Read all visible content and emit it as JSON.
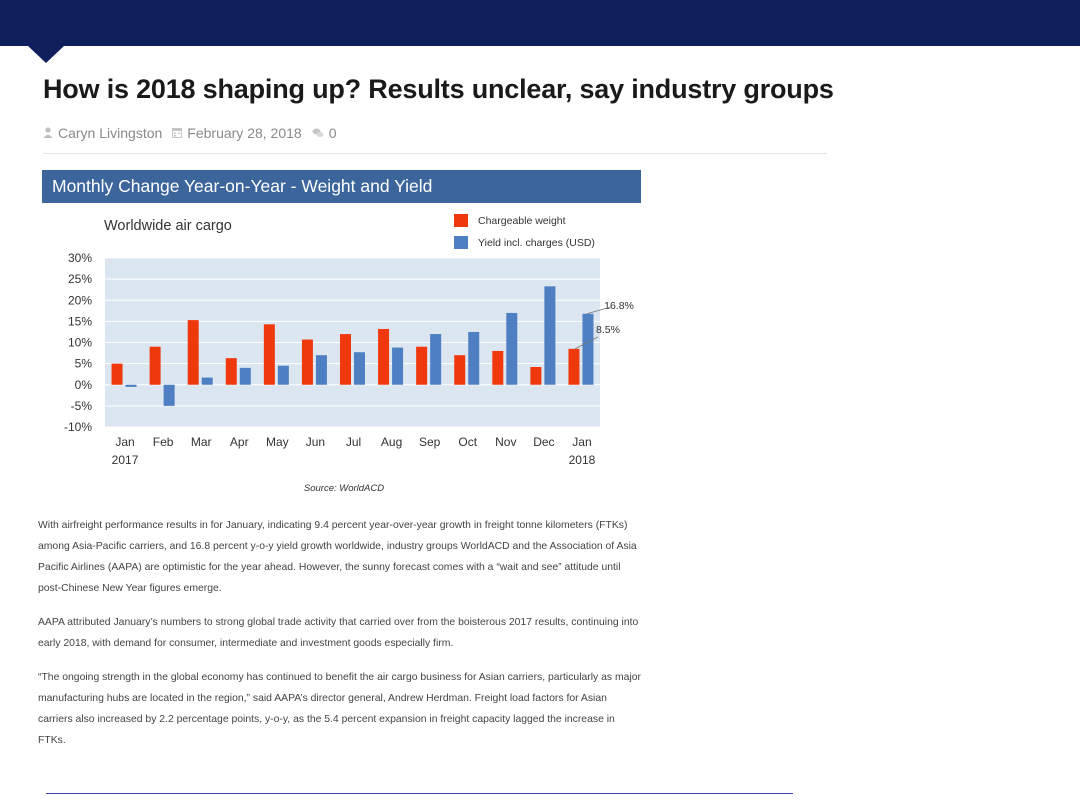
{
  "article": {
    "title": "How is 2018 shaping up? Results unclear, say industry groups",
    "author": "Caryn Livingston",
    "date": "February 28, 2018",
    "comments": "0",
    "icons": [
      "user-icon",
      "calendar-icon",
      "comments-icon"
    ],
    "paragraphs": [
      "With airfreight performance results in for January, indicating 9.4 percent year-over-year growth in freight tonne kilometers (FTKs) among Asia-Pacific carriers, and 16.8 percent y-o-y yield growth worldwide, industry groups WorldACD and the Association of Asia Pacific Airlines (AAPA) are optimistic for the year ahead. However, the sunny forecast comes with a “wait and see” attitude until post-Chinese New Year figures emerge.",
      "AAPA attributed January’s numbers to strong global trade activity that carried over from the boisterous 2017 results, continuing into early 2018, with demand for consumer, intermediate and investment goods especially firm.",
      "“The ongoing strength in the global economy has continued to benefit the air cargo business for Asian carriers, particularly as major manufacturing hubs are located in the region,” said AAPA’s director general, Andrew Herdman. Freight load factors for Asian carriers also increased by 2.2 percentage points, y-o-y, as the 5.4 percent expansion in freight capacity lagged the increase in FTKs."
    ]
  },
  "chart_data": {
    "type": "bar",
    "header": "Monthly Change Year-on-Year - Weight and Yield",
    "title": "Worldwide air cargo",
    "source": "Source: WorldACD",
    "categories": [
      "Jan",
      "Feb",
      "Mar",
      "Apr",
      "May",
      "Jun",
      "Jul",
      "Aug",
      "Sep",
      "Oct",
      "Nov",
      "Dec",
      "Jan"
    ],
    "category_years": [
      "2017",
      "",
      "",
      "",
      "",
      "",
      "",
      "",
      "",
      "",
      "",
      "",
      "2018"
    ],
    "yticks": [
      "30%",
      "25%",
      "20%",
      "15%",
      "10%",
      "5%",
      "0%",
      "-5%",
      "-10%"
    ],
    "ylim": [
      -10,
      30
    ],
    "series": [
      {
        "name": "Chargeable weight",
        "color": "#f0380d",
        "values": [
          5,
          9,
          15.3,
          6.3,
          14.3,
          10.7,
          12,
          13.2,
          9,
          7,
          8,
          4.2,
          8.5
        ]
      },
      {
        "name": "Yield incl. charges (USD)",
        "color": "#4d7fc2",
        "values": [
          -0.5,
          -5,
          1.7,
          4,
          4.5,
          7,
          7.7,
          8.8,
          12,
          12.5,
          17,
          23.3,
          16.8
        ]
      }
    ],
    "annotations": [
      "16.8%",
      "8.5%"
    ],
    "legend": "top-right",
    "grid": true,
    "plot_bg": "#dce6f1"
  }
}
